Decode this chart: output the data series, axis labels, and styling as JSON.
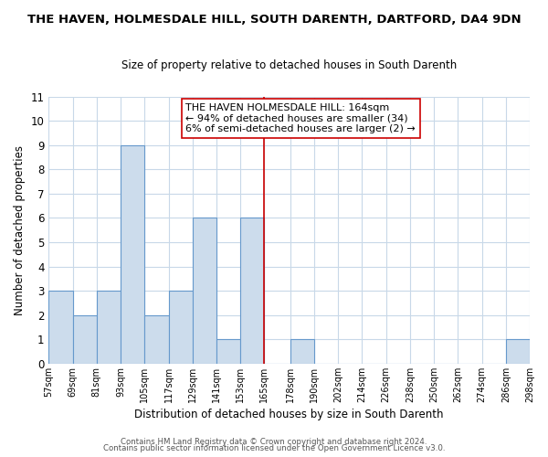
{
  "title": "THE HAVEN, HOLMESDALE HILL, SOUTH DARENTH, DARTFORD, DA4 9DN",
  "subtitle": "Size of property relative to detached houses in South Darenth",
  "xlabel": "Distribution of detached houses by size in South Darenth",
  "ylabel": "Number of detached properties",
  "bin_edges": [
    57,
    69,
    81,
    93,
    105,
    117,
    129,
    141,
    153,
    165,
    178,
    190,
    202,
    214,
    226,
    238,
    250,
    262,
    274,
    286,
    298
  ],
  "bar_heights": [
    3,
    2,
    3,
    9,
    2,
    3,
    6,
    1,
    6,
    0,
    1,
    0,
    0,
    0,
    0,
    0,
    0,
    0,
    0,
    1
  ],
  "bar_color": "#ccdcec",
  "bar_edge_color": "#6699cc",
  "vline_x": 165,
  "vline_color": "#cc0000",
  "ylim": [
    0,
    11
  ],
  "yticks": [
    0,
    1,
    2,
    3,
    4,
    5,
    6,
    7,
    8,
    9,
    10,
    11
  ],
  "annotation_title": "THE HAVEN HOLMESDALE HILL: 164sqm",
  "annotation_line1": "← 94% of detached houses are smaller (34)",
  "annotation_line2": "6% of semi-detached houses are larger (2) →",
  "tick_labels": [
    "57sqm",
    "69sqm",
    "81sqm",
    "93sqm",
    "105sqm",
    "117sqm",
    "129sqm",
    "141sqm",
    "153sqm",
    "165sqm",
    "178sqm",
    "190sqm",
    "202sqm",
    "214sqm",
    "226sqm",
    "238sqm",
    "250sqm",
    "262sqm",
    "274sqm",
    "286sqm",
    "298sqm"
  ],
  "footnote1": "Contains HM Land Registry data © Crown copyright and database right 2024.",
  "footnote2": "Contains public sector information licensed under the Open Government Licence v3.0.",
  "background_color": "#ffffff",
  "grid_color": "#c8d8e8"
}
